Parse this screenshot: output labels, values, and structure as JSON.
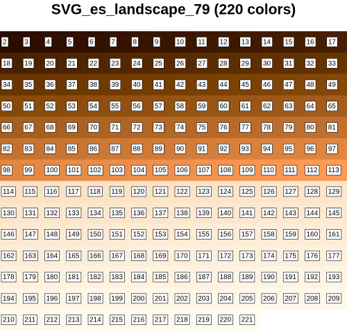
{
  "title": "SVG_es_landscape_79 (220 colors)",
  "columns": 16,
  "labels": [
    2,
    3,
    4,
    5,
    6,
    7,
    8,
    9,
    10,
    11,
    12,
    13,
    14,
    15,
    16,
    17,
    18,
    19,
    20,
    21,
    22,
    23,
    24,
    25,
    26,
    27,
    28,
    29,
    30,
    31,
    32,
    33,
    34,
    35,
    36,
    37,
    38,
    39,
    40,
    41,
    42,
    43,
    44,
    45,
    46,
    47,
    48,
    49,
    50,
    51,
    52,
    53,
    54,
    55,
    56,
    57,
    58,
    59,
    60,
    61,
    62,
    63,
    64,
    65,
    66,
    67,
    68,
    69,
    70,
    71,
    72,
    73,
    74,
    75,
    76,
    77,
    78,
    79,
    80,
    81,
    82,
    83,
    84,
    85,
    86,
    87,
    88,
    89,
    90,
    91,
    92,
    93,
    94,
    95,
    96,
    97,
    98,
    99,
    100,
    101,
    102,
    103,
    104,
    105,
    106,
    107,
    108,
    109,
    110,
    111,
    112,
    113,
    114,
    115,
    116,
    117,
    118,
    119,
    120,
    121,
    122,
    123,
    124,
    125,
    126,
    127,
    128,
    129,
    130,
    131,
    132,
    133,
    134,
    135,
    136,
    137,
    138,
    139,
    140,
    141,
    142,
    143,
    144,
    145,
    146,
    147,
    148,
    149,
    150,
    151,
    152,
    153,
    154,
    155,
    156,
    157,
    158,
    159,
    160,
    161,
    162,
    163,
    164,
    165,
    166,
    167,
    168,
    169,
    170,
    171,
    172,
    173,
    174,
    175,
    176,
    177,
    178,
    179,
    180,
    181,
    182,
    183,
    184,
    185,
    186,
    187,
    188,
    189,
    190,
    191,
    192,
    193,
    194,
    195,
    196,
    197,
    198,
    199,
    200,
    201,
    202,
    203,
    204,
    205,
    206,
    207,
    208,
    209,
    210,
    211,
    212,
    213,
    214,
    215,
    216,
    217,
    218,
    219,
    220,
    221
  ],
  "colors": [
    "rgb(43,12,0)",
    "rgb(45,13,0)",
    "rgb(47,15,0)",
    "rgb(49,16,0)",
    "rgb(51,17,0)",
    "rgb(53,18,0)",
    "rgb(54,20,0)",
    "rgb(56,21,0)",
    "rgb(58,22,0)",
    "rgb(60,24,0)",
    "rgb(62,25,0)",
    "rgb(64,26,0)",
    "rgb(66,27,0)",
    "rgb(68,29,0)",
    "rgb(70,30,0)",
    "rgb(72,31,0)",
    "rgb(73,32,0)",
    "rgb(75,34,0)",
    "rgb(77,35,0)",
    "rgb(79,36,0)",
    "rgb(81,37,0)",
    "rgb(83,39,0)",
    "rgb(85,40,0)",
    "rgb(87,41,0)",
    "rgb(89,42,0)",
    "rgb(91,44,0)",
    "rgb(93,45,0)",
    "rgb(94,46,0)",
    "rgb(96,48,0)",
    "rgb(98,49,0)",
    "rgb(100,50,0)",
    "rgb(102,52,0)",
    "rgb(104,53,0)",
    "rgb(106,54,0)",
    "rgb(108,55,0)",
    "rgb(110,57,0)",
    "rgb(112,58,0)",
    "rgb(114,59,0)",
    "rgb(116,61,0)",
    "rgb(117,62,0)",
    "rgb(119,63,0)",
    "rgb(121,64,1)",
    "rgb(123,66,2)",
    "rgb(125,67,4)",
    "rgb(127,68,5)",
    "rgb(129,70,6)",
    "rgb(131,71,7)",
    "rgb(133,72,8)",
    "rgb(134,73,10)",
    "rgb(136,75,11)",
    "rgb(138,76,12)",
    "rgb(140,77,13)",
    "rgb(142,79,14)",
    "rgb(144,80,16)",
    "rgb(146,81,17)",
    "rgb(148,82,18)",
    "rgb(150,84,19)",
    "rgb(152,85,20)",
    "rgb(154,86,22)",
    "rgb(155,87,23)",
    "rgb(157,89,24)",
    "rgb(159,90,25)",
    "rgb(161,91,26)",
    "rgb(163,93,28)",
    "rgb(165,94,29)",
    "rgb(167,95,30)",
    "rgb(169,96,31)",
    "rgb(171,98,32)",
    "rgb(173,99,34)",
    "rgb(175,100,35)",
    "rgb(177,102,36)",
    "rgb(178,103,37)",
    "rgb(180,104,38)",
    "rgb(182,105,40)",
    "rgb(184,107,41)",
    "rgb(186,108,42)",
    "rgb(188,109,43)",
    "rgb(190,111,44)",
    "rgb(192,112,46)",
    "rgb(194,113,47)",
    "rgb(195,114,48)",
    "rgb(197,116,49)",
    "rgb(199,117,50)",
    "rgb(201,118,52)",
    "rgb(203,120,53)",
    "rgb(205,121,54)",
    "rgb(207,122,55)",
    "rgb(209,123,56)",
    "rgb(211,125,58)",
    "rgb(213,126,59)",
    "rgb(215,127,60)",
    "rgb(216,129,61)",
    "rgb(218,130,62)",
    "rgb(220,131,64)",
    "rgb(222,132,65)",
    "rgb(224,134,66)",
    "rgb(226,135,67)",
    "rgb(228,136,68)",
    "rgb(230,138,70)",
    "rgb(232,139,71)",
    "rgb(234,140,72)",
    "rgb(236,141,73)",
    "rgb(237,143,74)",
    "rgb(239,144,76)",
    "rgb(241,145,77)",
    "rgb(243,147,78)",
    "rgb(245,148,79)",
    "rgb(247,149,80)",
    "rgb(249,150,82)",
    "rgb(251,152,83)",
    "rgb(253,153,84)",
    "rgb(255,154,85)",
    "rgb(252,226,196)",
    "rgb(252,226,196)",
    "rgb(252,226,197)",
    "rgb(252,227,197)",
    "rgb(252,227,198)",
    "rgb(252,227,198)",
    "rgb(252,227,198)",
    "rgb(252,228,199)",
    "rgb(252,228,199)",
    "rgb(252,228,200)",
    "rgb(252,228,200)",
    "rgb(252,228,201)",
    "rgb(252,229,201)",
    "rgb(252,229,201)",
    "rgb(252,229,202)",
    "rgb(252,229,202)",
    "rgb(252,230,203)",
    "rgb(252,230,203)",
    "rgb(252,230,204)",
    "rgb(252,230,204)",
    "rgb(252,231,204)",
    "rgb(252,231,205)",
    "rgb(252,231,205)",
    "rgb(252,231,206)",
    "rgb(252,232,206)",
    "rgb(252,232,206)",
    "rgb(252,232,207)",
    "rgb(252,232,207)",
    "rgb(252,233,208)",
    "rgb(252,233,208)",
    "rgb(252,233,208)",
    "rgb(252,233,209)",
    "rgb(253,233,209)",
    "rgb(253,234,210)",
    "rgb(253,234,210)",
    "rgb(253,234,210)",
    "rgb(253,234,211)",
    "rgb(253,235,211)",
    "rgb(253,235,212)",
    "rgb(253,235,212)",
    "rgb(253,235,212)",
    "rgb(253,236,213)",
    "rgb(253,236,213)",
    "rgb(253,236,214)",
    "rgb(253,236,214)",
    "rgb(253,237,214)",
    "rgb(253,237,215)",
    "rgb(253,237,215)",
    "rgb(253,237,216)",
    "rgb(253,237,216)",
    "rgb(253,238,217)",
    "rgb(253,238,217)",
    "rgb(253,238,217)",
    "rgb(253,238,218)",
    "rgb(253,239,218)",
    "rgb(253,239,219)",
    "rgb(253,239,219)",
    "rgb(253,239,219)",
    "rgb(253,240,220)",
    "rgb(253,240,220)",
    "rgb(253,240,221)",
    "rgb(253,240,221)",
    "rgb(253,241,221)",
    "rgb(253,241,222)",
    "rgb(254,241,222)",
    "rgb(254,241,223)",
    "rgb(254,241,223)",
    "rgb(254,242,223)",
    "rgb(254,242,224)",
    "rgb(254,242,224)",
    "rgb(254,242,225)",
    "rgb(254,243,225)",
    "rgb(254,243,225)",
    "rgb(254,243,226)",
    "rgb(254,243,226)",
    "rgb(254,244,227)",
    "rgb(254,244,227)",
    "rgb(254,244,227)",
    "rgb(254,244,228)",
    "rgb(254,245,228)",
    "rgb(254,245,229)",
    "rgb(254,245,229)",
    "rgb(254,245,230)",
    "rgb(254,246,230)",
    "rgb(254,246,230)",
    "rgb(254,246,231)",
    "rgb(254,246,231)",
    "rgb(254,247,232)",
    "rgb(254,247,232)",
    "rgb(254,247,232)",
    "rgb(254,247,233)",
    "rgb(254,248,233)",
    "rgb(254,248,234)",
    "rgb(254,248,234)",
    "rgb(254,248,234)",
    "rgb(254,249,235)",
    "rgb(255,249,235)",
    "rgb(255,249,236)",
    "rgb(255,249,236)",
    "rgb(255,250,237)",
    "rgb(255,250,237)",
    "rgb(255,250,237)",
    "rgb(255,250,238)",
    "rgb(255,250,238)",
    "rgb(255,251,239)",
    "rgb(255,251,239)",
    "rgb(255,251,239)",
    "rgb(255,251,240)"
  ]
}
